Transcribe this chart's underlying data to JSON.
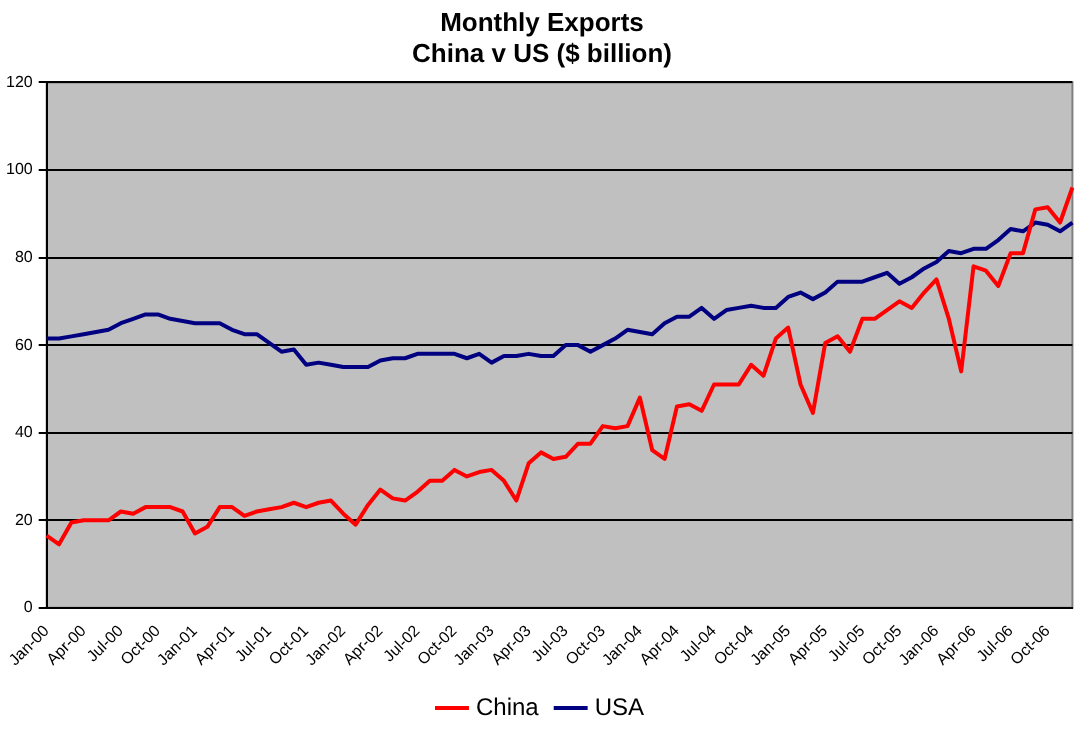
{
  "chart_data": {
    "type": "line",
    "title": "Monthly Exports",
    "subtitle": "China v US ($ billion)",
    "categories": [
      "Jan-00",
      null,
      null,
      "Apr-00",
      null,
      null,
      "Jul-00",
      null,
      null,
      "Oct-00",
      null,
      null,
      "Jan-01",
      null,
      null,
      "Apr-01",
      null,
      null,
      "Jul-01",
      null,
      null,
      "Oct-01",
      null,
      null,
      "Jan-02",
      null,
      null,
      "Apr-02",
      null,
      null,
      "Jul-02",
      null,
      null,
      "Oct-02",
      null,
      null,
      "Jan-03",
      null,
      null,
      "Apr-03",
      null,
      null,
      "Jul-03",
      null,
      null,
      "Oct-03",
      null,
      null,
      "Jan-04",
      null,
      null,
      "Apr-04",
      null,
      null,
      "Jul-04",
      null,
      null,
      "Oct-04",
      null,
      null,
      "Jan-05",
      null,
      null,
      "Apr-05",
      null,
      null,
      "Jul-05",
      null,
      null,
      "Oct-05",
      null,
      null,
      "Jan-06",
      null,
      null,
      "Apr-06",
      null,
      null,
      "Jul-06",
      null,
      null,
      "Oct-06",
      null,
      null
    ],
    "series": [
      {
        "name": "China",
        "color": "#ff0000",
        "values": [
          16.5,
          14.5,
          19.5,
          20,
          20,
          20,
          22,
          21.5,
          23,
          23,
          23,
          22,
          17,
          18.5,
          23,
          23,
          21,
          22,
          22.5,
          23,
          24,
          23,
          24,
          24.5,
          21.5,
          19,
          23.5,
          27,
          25,
          24.5,
          26.5,
          29,
          29,
          31.5,
          30,
          31,
          31.5,
          29,
          24.5,
          33,
          35.5,
          34,
          34.5,
          37.5,
          37.5,
          41.5,
          41,
          41.5,
          48,
          36,
          34,
          46,
          46.5,
          45,
          51,
          51,
          51,
          55.5,
          53,
          61.5,
          64,
          51,
          44.5,
          60.5,
          62,
          58.5,
          66,
          66,
          68,
          70,
          68.5,
          72,
          75,
          66,
          54,
          78,
          77,
          73.5,
          81,
          81,
          91,
          91.5,
          88,
          96
        ]
      },
      {
        "name": "USA",
        "color": "#000080",
        "values": [
          61.5,
          61.5,
          62,
          62.5,
          63,
          63.5,
          65,
          66,
          67,
          67,
          66,
          65.5,
          65,
          65,
          65,
          63.5,
          62.5,
          62.5,
          60.5,
          58.5,
          59,
          55.5,
          56,
          55.5,
          55,
          55,
          55,
          56.5,
          57,
          57,
          58,
          58,
          58,
          58,
          57,
          58,
          56,
          57.5,
          57.5,
          58,
          57.5,
          57.5,
          60,
          60,
          58.5,
          60,
          61.5,
          63.5,
          63,
          62.5,
          65,
          66.5,
          66.5,
          68.5,
          66,
          68,
          68.5,
          69,
          68.5,
          68.5,
          71,
          72,
          70.5,
          72,
          74.5,
          74.5,
          74.5,
          75.5,
          76.5,
          74,
          75.5,
          77.5,
          79,
          81.5,
          81,
          82,
          82,
          84,
          86.5,
          86,
          88,
          87.5,
          86,
          88
        ]
      }
    ],
    "ylim": [
      0,
      120
    ],
    "yticks": [
      0,
      20,
      40,
      60,
      80,
      100,
      120
    ],
    "grid": "y",
    "legend": "bottom",
    "marker": "none",
    "line_style": "solid"
  }
}
